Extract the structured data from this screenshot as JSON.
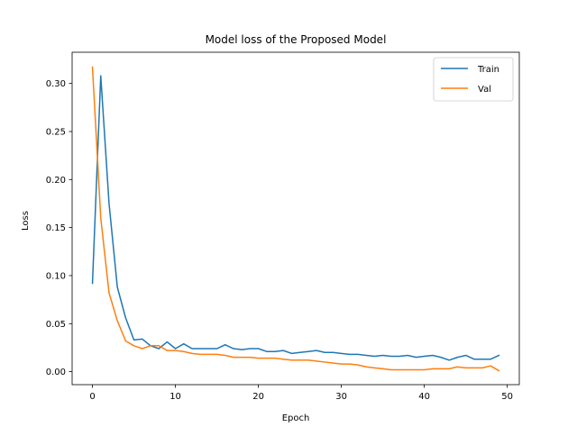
{
  "chart_data": {
    "type": "line",
    "title": "Model loss of the Proposed Model",
    "xlabel": "Epoch",
    "ylabel": "Loss",
    "xlim": [
      -2.45,
      51.45
    ],
    "ylim": [
      -0.0135,
      0.3325
    ],
    "xticks": [
      0,
      10,
      20,
      30,
      40,
      50
    ],
    "yticks": [
      0.0,
      0.05,
      0.1,
      0.15,
      0.2,
      0.25,
      0.3
    ],
    "xtick_labels": [
      "0",
      "10",
      "20",
      "30",
      "40",
      "50"
    ],
    "ytick_labels": [
      "0.00",
      "0.05",
      "0.10",
      "0.15",
      "0.20",
      "0.25",
      "0.30"
    ],
    "grid": false,
    "legend_position": "top-right",
    "series": [
      {
        "name": "Train",
        "color": "#1f77b4",
        "x": [
          0,
          1,
          2,
          3,
          4,
          5,
          6,
          7,
          8,
          9,
          10,
          11,
          12,
          13,
          14,
          15,
          16,
          17,
          18,
          19,
          20,
          21,
          22,
          23,
          24,
          25,
          26,
          27,
          28,
          29,
          30,
          31,
          32,
          33,
          34,
          35,
          36,
          37,
          38,
          39,
          40,
          41,
          42,
          43,
          44,
          45,
          46,
          47,
          48,
          49
        ],
        "values": [
          0.092,
          0.308,
          0.175,
          0.088,
          0.056,
          0.033,
          0.034,
          0.027,
          0.024,
          0.031,
          0.024,
          0.029,
          0.024,
          0.024,
          0.024,
          0.024,
          0.028,
          0.024,
          0.023,
          0.024,
          0.024,
          0.021,
          0.021,
          0.022,
          0.019,
          0.02,
          0.021,
          0.022,
          0.02,
          0.02,
          0.019,
          0.018,
          0.018,
          0.017,
          0.016,
          0.017,
          0.016,
          0.016,
          0.017,
          0.015,
          0.016,
          0.017,
          0.015,
          0.012,
          0.015,
          0.017,
          0.013,
          0.013,
          0.013,
          0.017
        ]
      },
      {
        "name": "Val",
        "color": "#ff7f0e",
        "x": [
          0,
          1,
          2,
          3,
          4,
          5,
          6,
          7,
          8,
          9,
          10,
          11,
          12,
          13,
          14,
          15,
          16,
          17,
          18,
          19,
          20,
          21,
          22,
          23,
          24,
          25,
          26,
          27,
          28,
          29,
          30,
          31,
          32,
          33,
          34,
          35,
          36,
          37,
          38,
          39,
          40,
          41,
          42,
          43,
          44,
          45,
          46,
          47,
          48,
          49
        ],
        "values": [
          0.317,
          0.16,
          0.082,
          0.053,
          0.032,
          0.027,
          0.024,
          0.027,
          0.027,
          0.022,
          0.022,
          0.021,
          0.019,
          0.018,
          0.018,
          0.018,
          0.017,
          0.015,
          0.015,
          0.015,
          0.014,
          0.014,
          0.014,
          0.013,
          0.012,
          0.012,
          0.012,
          0.011,
          0.01,
          0.009,
          0.008,
          0.008,
          0.007,
          0.005,
          0.004,
          0.003,
          0.002,
          0.002,
          0.002,
          0.002,
          0.002,
          0.003,
          0.003,
          0.003,
          0.005,
          0.004,
          0.004,
          0.004,
          0.006,
          0.001
        ]
      }
    ]
  }
}
